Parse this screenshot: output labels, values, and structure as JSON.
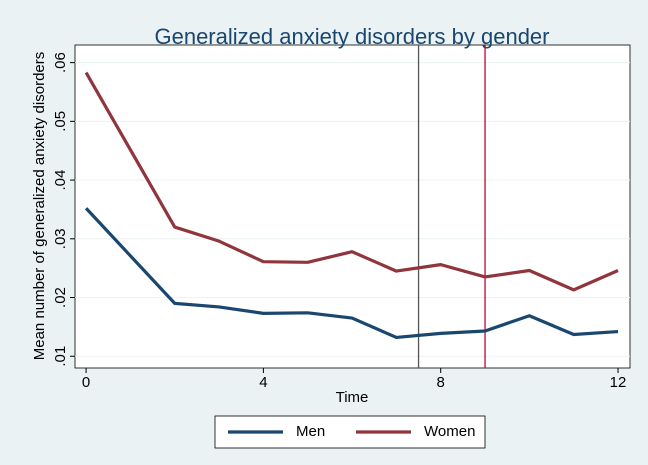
{
  "chart_data": {
    "type": "line",
    "title": "Generalized anxiety disorders by gender",
    "x_label": "Time",
    "y_label": "Mean number of generalized anxiety disorders",
    "x": [
      0,
      2,
      3,
      4,
      5,
      6,
      7,
      8,
      9,
      10,
      11,
      12
    ],
    "series": [
      {
        "name": "Men",
        "color": "#1a476f",
        "values": [
          0.0352,
          0.019,
          0.0184,
          0.0173,
          0.0174,
          0.0165,
          0.0132,
          0.0139,
          0.0143,
          0.0169,
          0.0137,
          0.0142
        ]
      },
      {
        "name": "Women",
        "color": "#90353b",
        "values": [
          0.0583,
          0.032,
          0.0296,
          0.0261,
          0.026,
          0.0278,
          0.0245,
          0.0256,
          0.0235,
          0.0246,
          0.0213,
          0.0246
        ]
      }
    ],
    "xlim": [
      -0.25,
      12.27
    ],
    "xticks": [
      0,
      4,
      8,
      12
    ],
    "ylim": [
      0.008,
      0.063
    ],
    "yticks": [
      {
        "value": 0.01,
        "label": ".01"
      },
      {
        "value": 0.02,
        "label": ".02"
      },
      {
        "value": 0.03,
        "label": ".03"
      },
      {
        "value": 0.04,
        "label": ".04"
      },
      {
        "value": 0.05,
        "label": ".05"
      },
      {
        "value": 0.06,
        "label": ".06"
      }
    ],
    "reference_lines": [
      {
        "x": 7.5,
        "color": "#555555"
      },
      {
        "x": 9,
        "color": "#c10534"
      }
    ],
    "grid": true,
    "legend": "bottom"
  }
}
